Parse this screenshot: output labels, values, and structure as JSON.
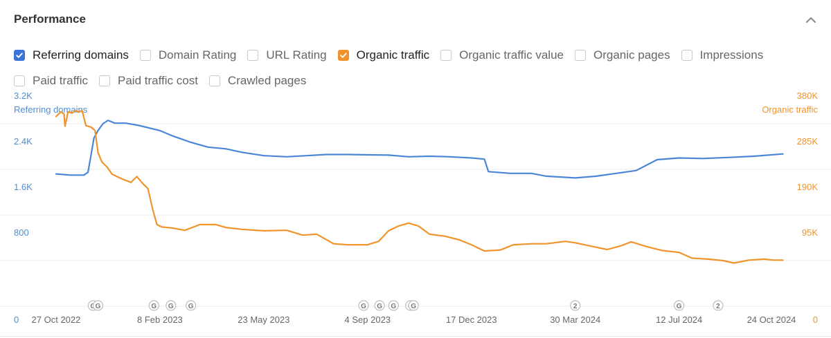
{
  "header": {
    "title": "Performance"
  },
  "metrics": [
    {
      "label": "Referring domains",
      "checked": true,
      "color": "#3b73d8"
    },
    {
      "label": "Domain Rating",
      "checked": false
    },
    {
      "label": "URL Rating",
      "checked": false
    },
    {
      "label": "Organic traffic",
      "checked": true,
      "color": "#f0932b"
    },
    {
      "label": "Organic traffic value",
      "checked": false
    },
    {
      "label": "Organic pages",
      "checked": false
    },
    {
      "label": "Impressions",
      "checked": false
    },
    {
      "label": "Paid traffic",
      "checked": false
    },
    {
      "label": "Paid traffic cost",
      "checked": false
    },
    {
      "label": "Crawled pages",
      "checked": false
    }
  ],
  "chart_data": {
    "type": "line",
    "left_axis_title": "Referring domains",
    "right_axis_title": "Organic traffic",
    "left_ticks": [
      "0",
      "800",
      "1.6K",
      "2.4K",
      "3.2K"
    ],
    "right_ticks": [
      "0",
      "95K",
      "190K",
      "285K",
      "380K"
    ],
    "left_ylim": [
      0,
      3200
    ],
    "right_ylim": [
      0,
      380000
    ],
    "x_ticks": [
      {
        "date": "2022-10-27",
        "label": "27 Oct 2022"
      },
      {
        "date": "2023-02-08",
        "label": "8 Feb 2023"
      },
      {
        "date": "2023-05-23",
        "label": "23 May 2023"
      },
      {
        "date": "2023-09-04",
        "label": "4 Sep 2023"
      },
      {
        "date": "2023-12-17",
        "label": "17 Dec 2023"
      },
      {
        "date": "2024-03-30",
        "label": "30 Mar 2024"
      },
      {
        "date": "2024-07-12",
        "label": "12 Jul 2024"
      },
      {
        "date": "2024-10-24",
        "label": "24 Oct 2024"
      }
    ],
    "xlim": [
      "2022-10-09",
      "2024-11-12"
    ],
    "colors": {
      "referring_domains": "#4a86d6",
      "organic_traffic": "#f0932b"
    },
    "series": [
      {
        "name": "Referring domains",
        "axis": "left",
        "points": [
          [
            "2022-10-27",
            2320
          ],
          [
            "2022-11-10",
            2300
          ],
          [
            "2022-11-24",
            2300
          ],
          [
            "2022-11-28",
            2350
          ],
          [
            "2022-12-01",
            2650
          ],
          [
            "2022-12-04",
            2950
          ],
          [
            "2022-12-08",
            3080
          ],
          [
            "2022-12-13",
            3200
          ],
          [
            "2022-12-18",
            3260
          ],
          [
            "2022-12-25",
            3210
          ],
          [
            "2023-01-05",
            3210
          ],
          [
            "2023-01-18",
            3170
          ],
          [
            "2023-02-08",
            3080
          ],
          [
            "2023-02-20",
            2990
          ],
          [
            "2023-03-10",
            2880
          ],
          [
            "2023-03-28",
            2790
          ],
          [
            "2023-04-15",
            2760
          ],
          [
            "2023-05-01",
            2700
          ],
          [
            "2023-05-23",
            2640
          ],
          [
            "2023-06-15",
            2620
          ],
          [
            "2023-07-05",
            2640
          ],
          [
            "2023-07-25",
            2660
          ],
          [
            "2023-08-15",
            2660
          ],
          [
            "2023-09-04",
            2655
          ],
          [
            "2023-09-25",
            2650
          ],
          [
            "2023-10-15",
            2620
          ],
          [
            "2023-11-05",
            2630
          ],
          [
            "2023-11-25",
            2620
          ],
          [
            "2023-12-17",
            2600
          ],
          [
            "2023-12-30",
            2580
          ],
          [
            "2024-01-03",
            2360
          ],
          [
            "2024-01-25",
            2330
          ],
          [
            "2024-02-15",
            2330
          ],
          [
            "2024-03-01",
            2280
          ],
          [
            "2024-03-30",
            2250
          ],
          [
            "2024-04-20",
            2280
          ],
          [
            "2024-05-10",
            2330
          ],
          [
            "2024-05-30",
            2380
          ],
          [
            "2024-06-20",
            2570
          ],
          [
            "2024-07-12",
            2600
          ],
          [
            "2024-08-05",
            2590
          ],
          [
            "2024-09-01",
            2610
          ],
          [
            "2024-09-25",
            2630
          ],
          [
            "2024-10-24",
            2670
          ]
        ]
      },
      {
        "name": "Organic traffic",
        "axis": "right",
        "points": [
          [
            "2022-10-27",
            395000
          ],
          [
            "2022-11-01",
            405000
          ],
          [
            "2022-11-04",
            400000
          ],
          [
            "2022-11-05",
            375000
          ],
          [
            "2022-11-08",
            405000
          ],
          [
            "2022-11-12",
            402000
          ],
          [
            "2022-11-15",
            407000
          ],
          [
            "2022-11-19",
            404000
          ],
          [
            "2022-11-22",
            408000
          ],
          [
            "2022-11-26",
            376000
          ],
          [
            "2022-12-01",
            373000
          ],
          [
            "2022-12-05",
            366000
          ],
          [
            "2022-12-08",
            320000
          ],
          [
            "2022-12-12",
            300000
          ],
          [
            "2022-12-17",
            290000
          ],
          [
            "2022-12-22",
            275000
          ],
          [
            "2023-01-01",
            265000
          ],
          [
            "2023-01-10",
            258000
          ],
          [
            "2023-01-16",
            270000
          ],
          [
            "2023-01-22",
            255000
          ],
          [
            "2023-01-27",
            245000
          ],
          [
            "2023-02-01",
            200000
          ],
          [
            "2023-02-05",
            170000
          ],
          [
            "2023-02-10",
            165000
          ],
          [
            "2023-02-20",
            163000
          ],
          [
            "2023-03-05",
            158000
          ],
          [
            "2023-03-20",
            170000
          ],
          [
            "2023-04-05",
            170000
          ],
          [
            "2023-04-15",
            164000
          ],
          [
            "2023-05-01",
            160000
          ],
          [
            "2023-05-23",
            157000
          ],
          [
            "2023-06-15",
            158000
          ],
          [
            "2023-07-01",
            148000
          ],
          [
            "2023-07-15",
            150000
          ],
          [
            "2023-08-01",
            130000
          ],
          [
            "2023-08-15",
            128000
          ],
          [
            "2023-09-04",
            128000
          ],
          [
            "2023-09-15",
            135000
          ],
          [
            "2023-09-25",
            157000
          ],
          [
            "2023-10-05",
            167000
          ],
          [
            "2023-10-15",
            173000
          ],
          [
            "2023-10-25",
            167000
          ],
          [
            "2023-11-05",
            150000
          ],
          [
            "2023-11-20",
            146000
          ],
          [
            "2023-12-05",
            138000
          ],
          [
            "2023-12-17",
            128000
          ],
          [
            "2023-12-30",
            115000
          ],
          [
            "2024-01-15",
            117000
          ],
          [
            "2024-01-28",
            128000
          ],
          [
            "2024-02-15",
            130000
          ],
          [
            "2024-03-01",
            130000
          ],
          [
            "2024-03-20",
            135000
          ],
          [
            "2024-03-30",
            132000
          ],
          [
            "2024-04-15",
            125000
          ],
          [
            "2024-05-01",
            118000
          ],
          [
            "2024-05-15",
            126000
          ],
          [
            "2024-05-25",
            134000
          ],
          [
            "2024-06-10",
            124000
          ],
          [
            "2024-06-25",
            116000
          ],
          [
            "2024-07-12",
            112000
          ],
          [
            "2024-07-25",
            100000
          ],
          [
            "2024-08-10",
            98000
          ],
          [
            "2024-08-25",
            95000
          ],
          [
            "2024-09-05",
            90000
          ],
          [
            "2024-09-20",
            96000
          ],
          [
            "2024-10-05",
            98000
          ],
          [
            "2024-10-15",
            96000
          ],
          [
            "2024-10-24",
            96000
          ]
        ]
      }
    ],
    "annotations": [
      {
        "date": "2022-12-03",
        "label": "G"
      },
      {
        "date": "2022-12-08",
        "label": "G"
      },
      {
        "date": "2023-02-02",
        "label": "G"
      },
      {
        "date": "2023-02-19",
        "label": "G"
      },
      {
        "date": "2023-03-11",
        "label": "G"
      },
      {
        "date": "2023-08-31",
        "label": "G"
      },
      {
        "date": "2023-09-16",
        "label": "G"
      },
      {
        "date": "2023-09-30",
        "label": "G"
      },
      {
        "date": "2023-10-17",
        "label": "G"
      },
      {
        "date": "2023-10-20",
        "label": "G"
      },
      {
        "date": "2024-03-30",
        "label": "2"
      },
      {
        "date": "2024-07-12",
        "label": "G"
      },
      {
        "date": "2024-08-20",
        "label": "2"
      }
    ],
    "grid": true
  }
}
